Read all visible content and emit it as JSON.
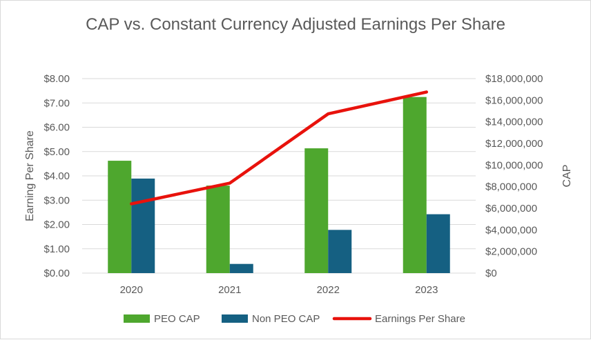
{
  "chart_data": {
    "type": "bar+line",
    "title": "CAP vs. Constant Currency Adjusted Earnings Per Share",
    "categories": [
      "2020",
      "2021",
      "2022",
      "2023"
    ],
    "ylabel_left": "Earning Per Share",
    "ylabel_right": "CAP",
    "ylim_left": [
      0,
      8
    ],
    "ylim_right": [
      0,
      18000000
    ],
    "left_ticks": [
      0,
      1,
      2,
      3,
      4,
      5,
      6,
      7,
      8
    ],
    "left_tick_labels": [
      "$0.00",
      "$1.00",
      "$2.00",
      "$3.00",
      "$4.00",
      "$5.00",
      "$6.00",
      "$7.00",
      "$8.00"
    ],
    "right_ticks": [
      0,
      2000000,
      4000000,
      6000000,
      8000000,
      10000000,
      12000000,
      14000000,
      16000000,
      18000000
    ],
    "right_tick_labels": [
      "$0",
      "$2,000,000",
      "$4,000,000",
      "$6,000,000",
      "$8,000,000",
      "$10,000,000",
      "$12,000,000",
      "$14,000,000",
      "$16,000,000",
      "$18,000,000"
    ],
    "series": [
      {
        "name": "PEO CAP",
        "type": "bar",
        "axis": "right",
        "color": "#4ea72e",
        "values": [
          10400000,
          8100000,
          11550000,
          16300000
        ]
      },
      {
        "name": "Non PEO CAP",
        "type": "bar",
        "axis": "right",
        "color": "#156082",
        "values": [
          8750000,
          850000,
          4000000,
          5450000
        ]
      },
      {
        "name": "Earnings Per Share",
        "type": "line",
        "axis": "left",
        "color": "#e8120c",
        "values": [
          2.85,
          3.7,
          6.55,
          7.45
        ]
      }
    ],
    "grid": true,
    "legend_position": "bottom"
  }
}
